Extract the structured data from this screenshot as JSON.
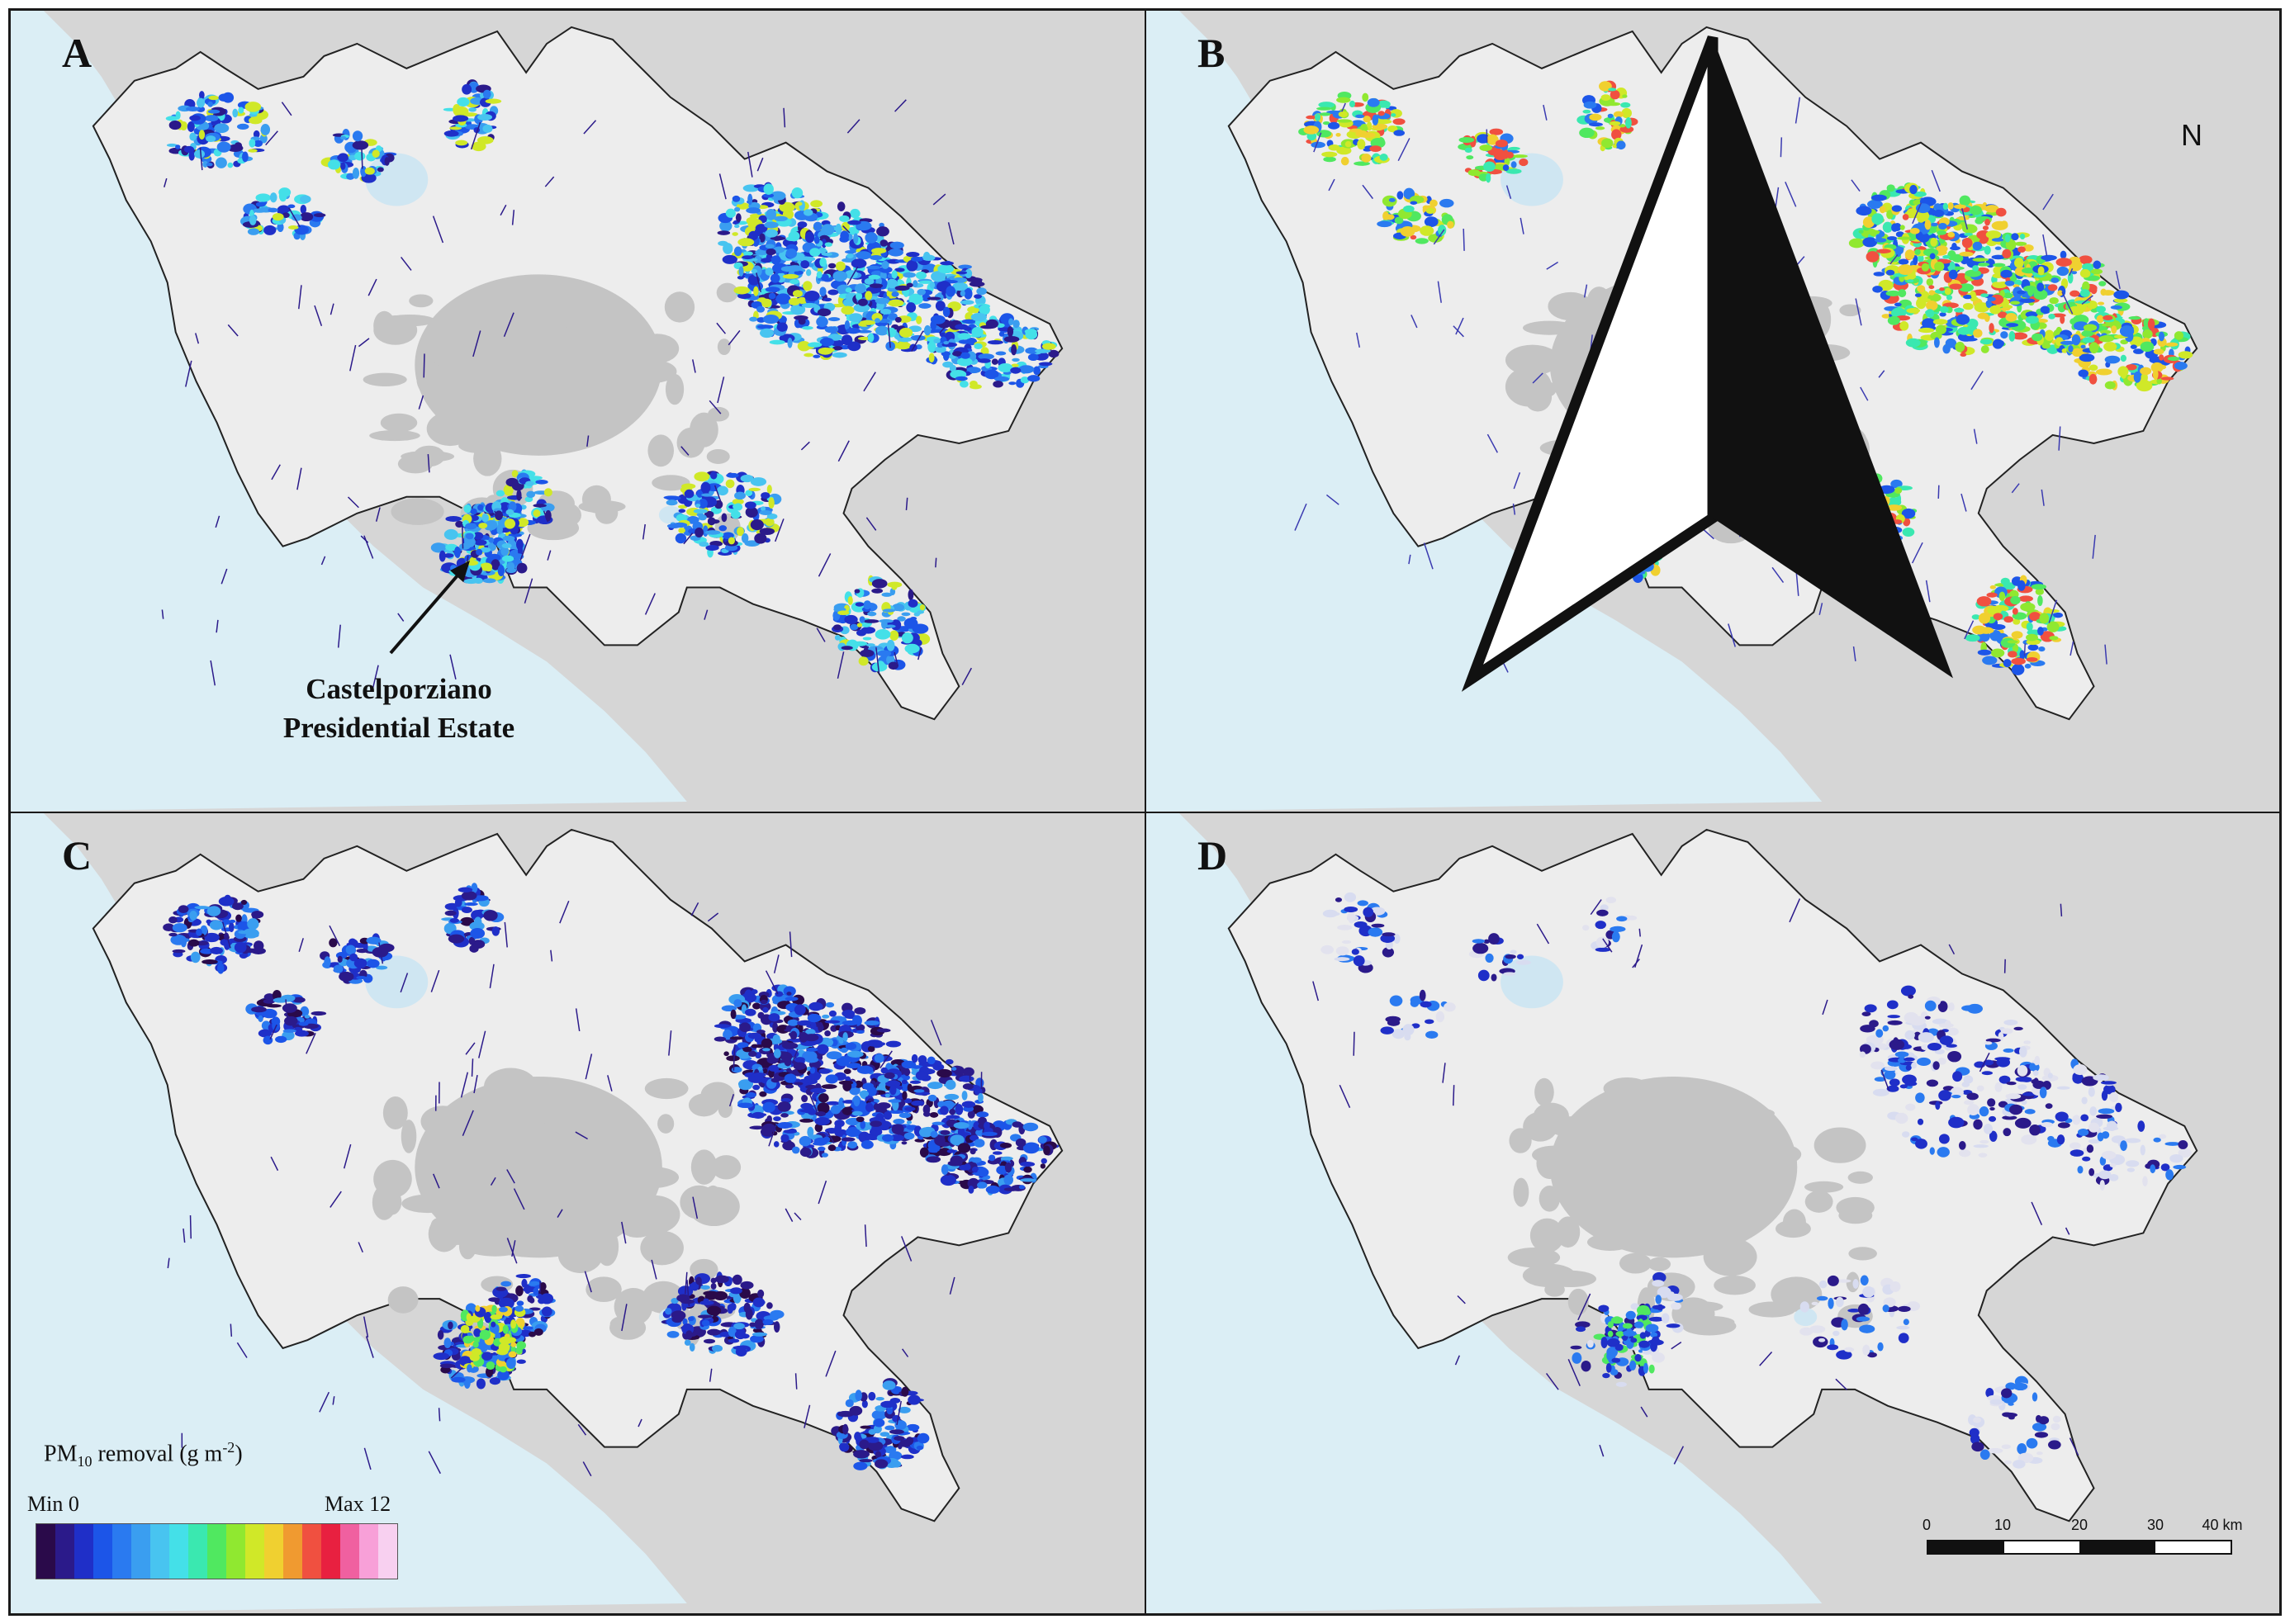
{
  "panels": [
    {
      "letter": "A"
    },
    {
      "letter": "B"
    },
    {
      "letter": "C"
    },
    {
      "letter": "D"
    }
  ],
  "annotation": {
    "line1": "Castelporziano",
    "line2": "Presidential Estate"
  },
  "legend": {
    "title_prefix": "PM",
    "title_sub": "10",
    "title_suffix": " removal (g m",
    "title_sup": "-2",
    "title_end": ")",
    "min_label": "Min 0",
    "max_label": "Max 12",
    "colors": [
      "#2a0a4a",
      "#2b1a8a",
      "#1f2fc8",
      "#1c55e8",
      "#2a7af0",
      "#3a9ef0",
      "#48c4f0",
      "#44e0e8",
      "#3ae8b0",
      "#50e860",
      "#90e830",
      "#d0e828",
      "#f0d030",
      "#f09a30",
      "#f05040",
      "#e82040",
      "#f060a0",
      "#f8a0d8",
      "#f8d0f0"
    ]
  },
  "north": {
    "label": "N"
  },
  "scalebar": {
    "ticks": [
      "0",
      "10",
      "20",
      "30",
      "40 km"
    ]
  },
  "colors": {
    "sea": "#dbeef5",
    "land_outside": "#d6d6d6",
    "region": "#ededed",
    "urban": "#c4c4c4",
    "lake": "#cfe6f2"
  }
}
